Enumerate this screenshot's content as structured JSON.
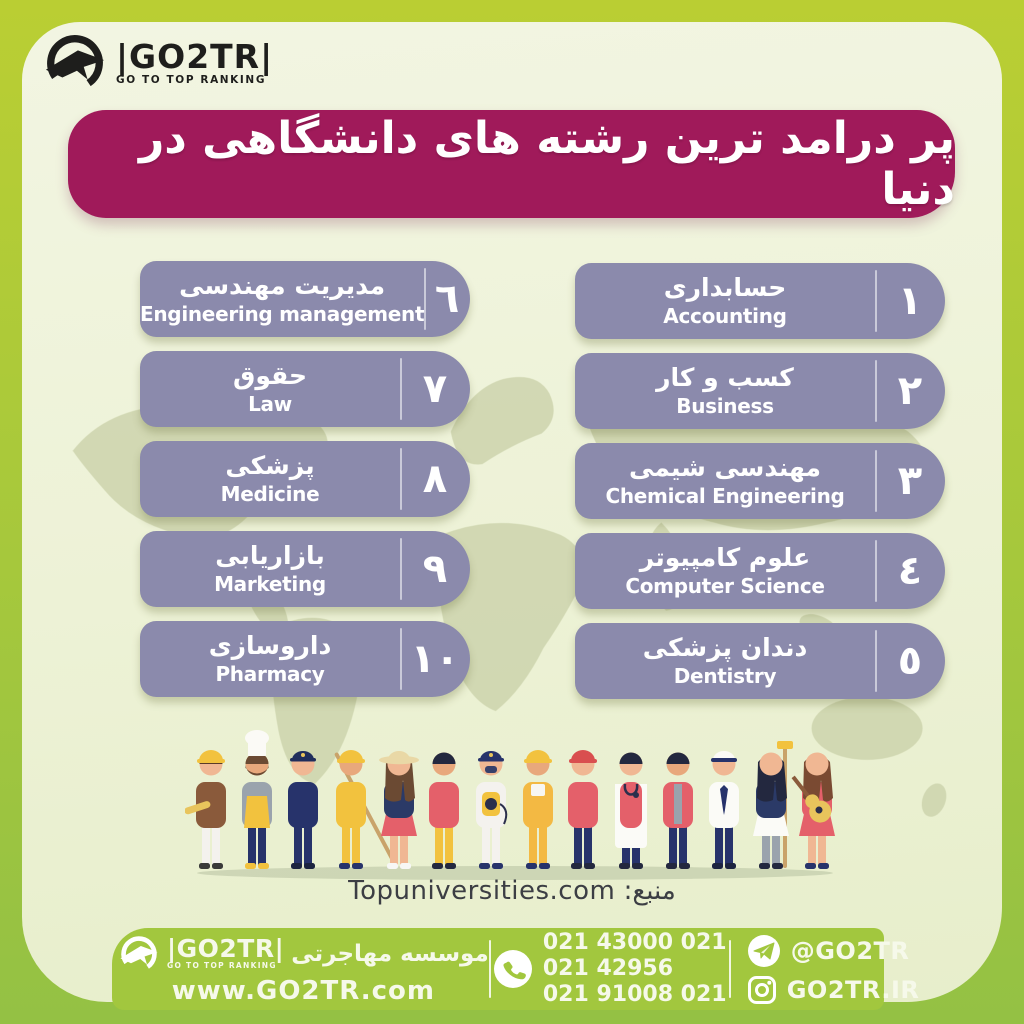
{
  "brand": {
    "name_display": "|GO2TR|",
    "tagline": "GO TO TOP RANKING"
  },
  "title": "پر درامد ترین رشته های دانشگاهی در دنیا",
  "majors": [
    {
      "rank": 1,
      "rank_fa": "١",
      "fa": "حسابداری",
      "en": "Accounting"
    },
    {
      "rank": 2,
      "rank_fa": "٢",
      "fa": "کسب و کار",
      "en": "Business"
    },
    {
      "rank": 3,
      "rank_fa": "٣",
      "fa": "مهندسی شیمی",
      "en": "Chemical Engineering"
    },
    {
      "rank": 4,
      "rank_fa": "٤",
      "fa": "علوم کامپیوتر",
      "en": "Computer Science"
    },
    {
      "rank": 5,
      "rank_fa": "٥",
      "fa": "دندان پزشکی",
      "en": "Dentistry"
    },
    {
      "rank": 6,
      "rank_fa": "٦",
      "fa": "مدیریت مهندسی",
      "en": "Engineering management"
    },
    {
      "rank": 7,
      "rank_fa": "٧",
      "fa": "حقوق",
      "en": "Law"
    },
    {
      "rank": 8,
      "rank_fa": "٨",
      "fa": "پزشکی",
      "en": "Medicine"
    },
    {
      "rank": 9,
      "rank_fa": "٩",
      "fa": "بازاریابی",
      "en": "Marketing"
    },
    {
      "rank": 10,
      "rank_fa": "١٠",
      "fa": "داروسازی",
      "en": "Pharmacy"
    }
  ],
  "source": {
    "label_fa": "منبع:",
    "site": "Topuniversities.com"
  },
  "footer": {
    "org_fa": "موسسه مهاجرتی",
    "website": "www.GO2TR.com",
    "phones": [
      "021 43000 021",
      "021 42956",
      "021 91008 021"
    ],
    "telegram": "@GO2TR",
    "instagram": "GO2TR.IR"
  },
  "colors": {
    "banner": "#a01a5a",
    "pill": "#8b8aac",
    "lime": "#a2c73e",
    "cream": "#eef2d8",
    "text_on_dark": "#ffffff"
  }
}
